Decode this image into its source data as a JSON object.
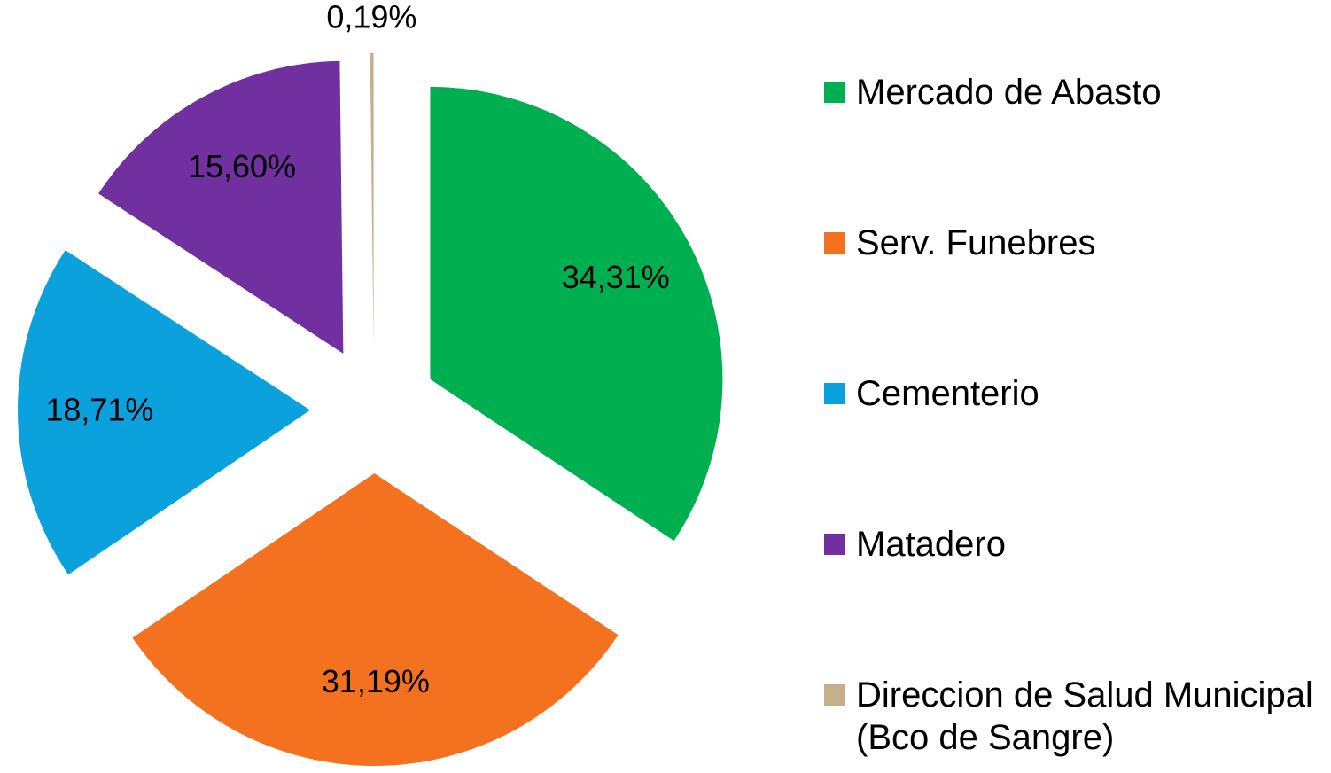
{
  "chart_data": {
    "type": "pie",
    "categories": [
      "Mercado de Abasto",
      "Serv. Funebres",
      "Cementerio",
      "Matadero",
      "Direccion de Salud Municipal (Bco de Sangre)"
    ],
    "values": [
      34.31,
      31.19,
      18.71,
      15.6,
      0.19
    ],
    "value_labels": [
      "34,31%",
      "31,19%",
      "18,71%",
      "15,60%",
      "0,19%"
    ],
    "colors": [
      "#00b050",
      "#f47120",
      "#0ba1dc",
      "#7030a0",
      "#c4b08c"
    ],
    "legend": "right"
  }
}
